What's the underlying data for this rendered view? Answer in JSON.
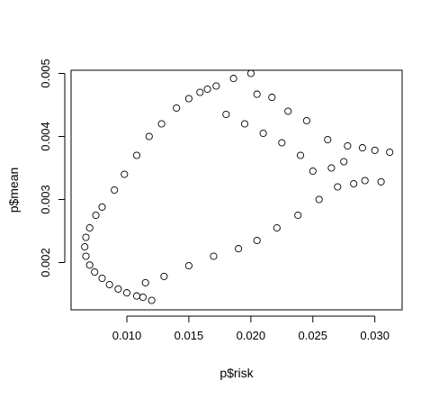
{
  "chart_data": {
    "type": "scatter",
    "title": "",
    "xlabel": "p$risk",
    "ylabel": "p$mean",
    "xlim": [
      0.0055,
      0.0322
    ],
    "ylim": [
      0.00125,
      0.00505
    ],
    "x_ticks": [
      0.01,
      0.015,
      0.02,
      0.025,
      0.03
    ],
    "x_tick_labels": [
      "0.010",
      "0.015",
      "0.020",
      "0.025",
      "0.030"
    ],
    "y_ticks": [
      0.002,
      0.003,
      0.004,
      0.005
    ],
    "y_tick_labels": [
      "0.002",
      "0.003",
      "0.004",
      "0.005"
    ],
    "grid": false,
    "legend": "none",
    "marker": "open-circle",
    "colors": {
      "points": "#000000",
      "axes": "#000000",
      "background": "#ffffff"
    },
    "series": [
      {
        "points": [
          [
            0.02,
            0.005
          ],
          [
            0.0186,
            0.00492
          ],
          [
            0.0172,
            0.0048
          ],
          [
            0.0165,
            0.00475
          ],
          [
            0.0159,
            0.0047
          ],
          [
            0.015,
            0.0046
          ],
          [
            0.014,
            0.00445
          ],
          [
            0.0128,
            0.0042
          ],
          [
            0.0118,
            0.004
          ],
          [
            0.0108,
            0.0037
          ],
          [
            0.0098,
            0.0034
          ],
          [
            0.009,
            0.00315
          ],
          [
            0.008,
            0.00288
          ],
          [
            0.0075,
            0.00275
          ],
          [
            0.007,
            0.00255
          ],
          [
            0.0067,
            0.0024
          ],
          [
            0.0066,
            0.00225
          ],
          [
            0.0067,
            0.0021
          ],
          [
            0.007,
            0.00196
          ],
          [
            0.0074,
            0.00185
          ],
          [
            0.008,
            0.00175
          ],
          [
            0.0086,
            0.00165
          ],
          [
            0.0093,
            0.00158
          ],
          [
            0.01,
            0.00152
          ],
          [
            0.0108,
            0.00147
          ],
          [
            0.0113,
            0.00145
          ],
          [
            0.012,
            0.0014
          ],
          [
            0.0205,
            0.00467
          ],
          [
            0.0217,
            0.00462
          ],
          [
            0.023,
            0.0044
          ],
          [
            0.0245,
            0.00425
          ],
          [
            0.0262,
            0.00395
          ],
          [
            0.0278,
            0.00385
          ],
          [
            0.029,
            0.00382
          ],
          [
            0.03,
            0.00378
          ],
          [
            0.0312,
            0.00375
          ],
          [
            0.0305,
            0.00328
          ],
          [
            0.0292,
            0.0033
          ],
          [
            0.0283,
            0.00325
          ],
          [
            0.027,
            0.0032
          ],
          [
            0.0255,
            0.003
          ],
          [
            0.0238,
            0.00275
          ],
          [
            0.0221,
            0.00255
          ],
          [
            0.0205,
            0.00235
          ],
          [
            0.019,
            0.00222
          ],
          [
            0.017,
            0.0021
          ],
          [
            0.015,
            0.00195
          ],
          [
            0.013,
            0.00178
          ],
          [
            0.0115,
            0.00168
          ],
          [
            0.0265,
            0.0035
          ],
          [
            0.0275,
            0.0036
          ],
          [
            0.025,
            0.00345
          ],
          [
            0.024,
            0.0037
          ],
          [
            0.0225,
            0.0039
          ],
          [
            0.021,
            0.00405
          ],
          [
            0.0195,
            0.0042
          ],
          [
            0.018,
            0.00435
          ]
        ]
      }
    ]
  }
}
